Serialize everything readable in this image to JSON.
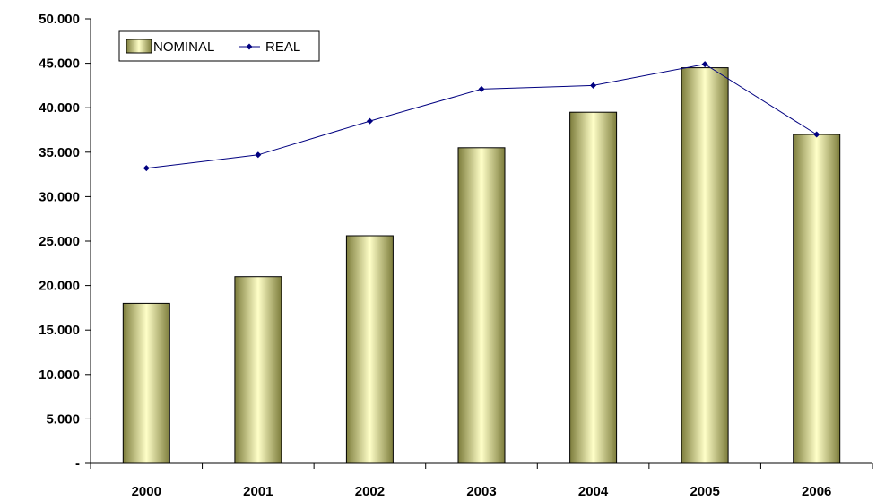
{
  "chart_data": {
    "type": "bar",
    "categories": [
      "2000",
      "2001",
      "2002",
      "2003",
      "2004",
      "2005",
      "2006"
    ],
    "series": [
      {
        "name": "NOMINAL",
        "type": "bar",
        "values": [
          18000,
          21000,
          25600,
          35500,
          39500,
          44500,
          37000
        ]
      },
      {
        "name": "REAL",
        "type": "line",
        "values": [
          33200,
          34700,
          38500,
          42100,
          42500,
          44900,
          37000
        ]
      }
    ],
    "yticks": [
      "-",
      "5.000",
      "10.000",
      "15.000",
      "20.000",
      "25.000",
      "30.000",
      "35.000",
      "40.000",
      "45.000",
      "50.000"
    ],
    "ylim": [
      0,
      50000
    ],
    "legend": "top-left",
    "grid": false,
    "colors": {
      "bar_light": "#ffffc8",
      "bar_dark": "#7d7d3c",
      "line": "#000080"
    }
  }
}
